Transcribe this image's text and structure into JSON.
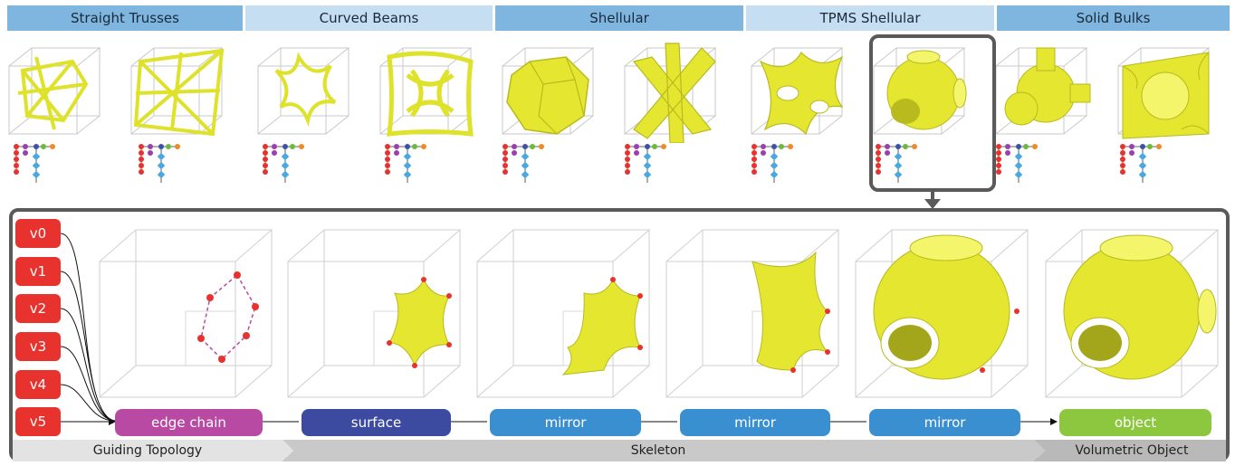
{
  "categories": [
    {
      "label": "Straight Trusses",
      "color": "#7fb6df"
    },
    {
      "label": "Curved Beams",
      "color": "#c6def2"
    },
    {
      "label": "Shellular",
      "color": "#7fb6df"
    },
    {
      "label": "TPMS Shellular",
      "color": "#c6def2"
    },
    {
      "label": "Solid Bulks",
      "color": "#7fb6df"
    }
  ],
  "vertices": [
    "v0",
    "v1",
    "v2",
    "v3",
    "v4",
    "v5"
  ],
  "pipeline": [
    {
      "label": "edge chain",
      "color": "#b84aa3"
    },
    {
      "label": "surface",
      "color": "#3c4aa0"
    },
    {
      "label": "mirror",
      "color": "#3a8fd1"
    },
    {
      "label": "mirror",
      "color": "#3a8fd1"
    },
    {
      "label": "mirror",
      "color": "#3a8fd1"
    },
    {
      "label": "object",
      "color": "#8dc63f"
    }
  ],
  "bands": [
    {
      "label": "Guiding Topology"
    },
    {
      "label": "Skeleton"
    },
    {
      "label": "Volumetric Object"
    }
  ],
  "colors": {
    "yellow": "#eef03a",
    "vertex": "#e8322d",
    "panel_border": "#5a5a5a",
    "band_light": "#e3e3e3",
    "band_dark": "#c9c9c9"
  },
  "icons": [
    "cube-wireframe-icon",
    "truss-lattice-icon",
    "tpms-surface-icon",
    "arrow-down-icon"
  ]
}
